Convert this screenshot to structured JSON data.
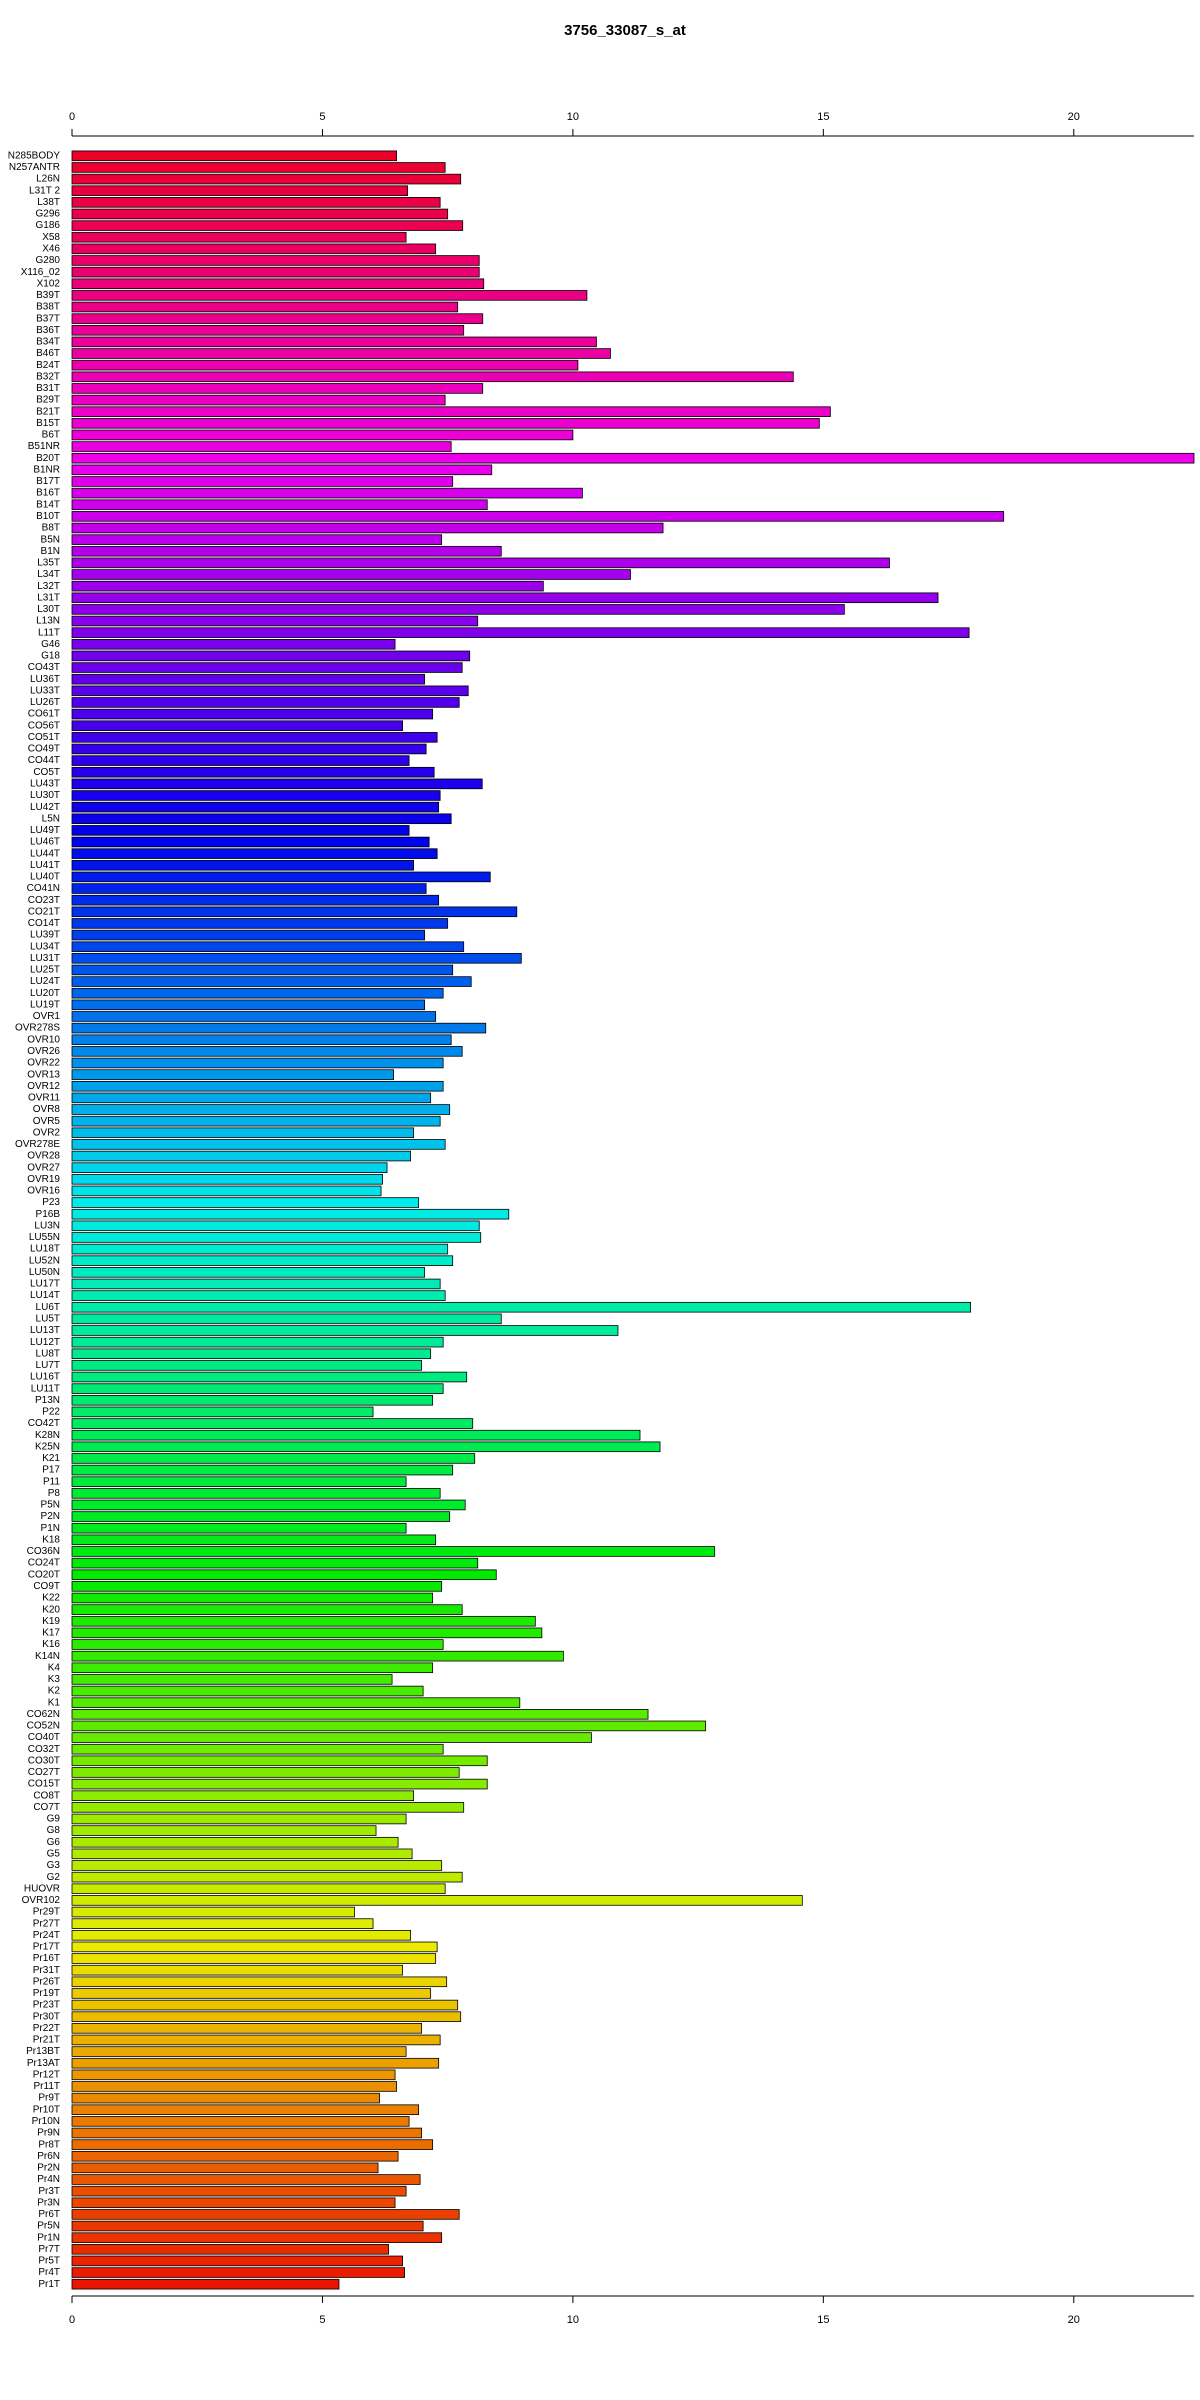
{
  "chart_data": {
    "type": "barh",
    "title": "3756_33087_s_at",
    "categories": [
      "N285BODY",
      "N257ANTR",
      "L26N",
      "L31T 2",
      "L38T",
      "G296",
      "G186",
      "X58",
      "X46",
      "G280",
      "X116_02",
      "X102",
      "B39T",
      "B38T",
      "B37T",
      "B36T",
      "B34T",
      "B46T",
      "B24T",
      "B32T",
      "B31T",
      "B29T",
      "B21T",
      "B15T",
      "B6T",
      "B51NR",
      "B20T",
      "B1NR",
      "B17T",
      "B16T",
      "B14T",
      "B10T",
      "B8T",
      "B5N",
      "B1N",
      "L35T",
      "L34T",
      "L32T",
      "L31T",
      "L30T",
      "L13N",
      "L11T",
      "G46",
      "G18",
      "CO43T",
      "LU36T",
      "LU33T",
      "LU26T",
      "CO61T",
      "CO56T",
      "CO51T",
      "CO49T",
      "CO44T",
      "CO5T",
      "LU43T",
      "LU30T",
      "LU42T",
      "L5N",
      "LU49T",
      "LU46T",
      "LU44T",
      "LU41T",
      "LU40T",
      "CO41N",
      "CO23T",
      "CO21T",
      "CO14T",
      "LU39T",
      "LU34T",
      "LU31T",
      "LU25T",
      "LU24T",
      "LU20T",
      "LU19T",
      "OVR1",
      "OVR278S",
      "OVR10",
      "OVR26",
      "OVR22",
      "OVR13",
      "OVR12",
      "OVR11",
      "OVR8",
      "OVR5",
      "OVR2",
      "OVR278E",
      "OVR28",
      "OVR27",
      "OVR19",
      "OVR16",
      "P23",
      "P16B",
      "LU3N",
      "LU55N",
      "LU18T",
      "LU52N",
      "LU50N",
      "LU17T",
      "LU14T",
      "LU6T",
      "LU5T",
      "LU13T",
      "LU12T",
      "LU8T",
      "LU7T",
      "LU16T",
      "LU11T",
      "P13N",
      "P22",
      "CO42T",
      "K28N",
      "K25N",
      "K21",
      "P17",
      "P11",
      "P8",
      "P5N",
      "P2N",
      "P1N",
      "K18",
      "CO36N",
      "CO24T",
      "CO20T",
      "CO9T",
      "K22",
      "K20",
      "K19",
      "K17",
      "K16",
      "K14N",
      "K4",
      "K3",
      "K2",
      "K1",
      "CO62N",
      "CO52N",
      "CO40T",
      "CO32T",
      "CO30T",
      "CO27T",
      "CO15T",
      "CO8T",
      "CO7T",
      "G9",
      "G8",
      "G6",
      "G5",
      "G3",
      "G2",
      "HUOVR",
      "OVR102",
      "Pr29T",
      "Pr27T",
      "Pr24T",
      "Pr17T",
      "Pr16T",
      "Pr31T",
      "Pr26T",
      "Pr19T",
      "Pr23T",
      "Pr30T",
      "Pr22T",
      "Pr21T",
      "Pr13BT",
      "Pr13AT",
      "Pr12T",
      "Pr11T",
      "Pr9T",
      "Pr10T",
      "Pr10N",
      "Pr9N",
      "Pr8T",
      "Pr6N",
      "Pr2N",
      "Pr4N",
      "Pr3T",
      "Pr3N",
      "Pr6T",
      "Pr5N",
      "Pr1N",
      "Pr7T",
      "Pr5T",
      "Pr4T",
      "Pr1T"
    ],
    "values": [
      6.48,
      7.45,
      7.76,
      6.7,
      7.35,
      7.5,
      7.8,
      6.67,
      7.26,
      8.13,
      8.13,
      8.22,
      10.28,
      7.7,
      8.2,
      7.82,
      10.47,
      10.75,
      10.1,
      14.4,
      8.2,
      7.45,
      15.14,
      14.92,
      10.0,
      7.57,
      22.4,
      8.38,
      7.6,
      10.19,
      8.29,
      18.6,
      11.8,
      7.38,
      8.57,
      16.32,
      11.15,
      9.41,
      17.29,
      15.42,
      8.1,
      17.91,
      6.45,
      7.94,
      7.79,
      7.04,
      7.91,
      7.73,
      7.2,
      6.6,
      7.29,
      7.07,
      6.73,
      7.23,
      8.19,
      7.35,
      7.32,
      7.57,
      6.73,
      7.13,
      7.29,
      6.82,
      8.35,
      7.07,
      7.32,
      8.88,
      7.5,
      7.04,
      7.82,
      8.97,
      7.6,
      7.97,
      7.41,
      7.04,
      7.26,
      8.26,
      7.57,
      7.79,
      7.41,
      6.42,
      7.41,
      7.16,
      7.54,
      7.35,
      6.82,
      7.45,
      6.76,
      6.29,
      6.2,
      6.17,
      6.92,
      8.72,
      8.13,
      8.16,
      7.5,
      7.6,
      7.04,
      7.35,
      7.45,
      17.94,
      8.57,
      10.9,
      7.41,
      7.16,
      6.98,
      7.88,
      7.41,
      7.2,
      6.01,
      8.0,
      11.34,
      11.74,
      8.04,
      7.6,
      6.67,
      7.35,
      7.85,
      7.54,
      6.67,
      7.26,
      12.83,
      8.1,
      8.47,
      7.38,
      7.2,
      7.79,
      9.25,
      9.38,
      7.41,
      9.81,
      7.2,
      6.39,
      7.01,
      8.94,
      11.5,
      12.65,
      10.37,
      7.41,
      8.29,
      7.73,
      8.29,
      6.82,
      7.82,
      6.67,
      6.07,
      6.51,
      6.79,
      7.38,
      7.79,
      7.45,
      14.58,
      5.64,
      6.01,
      6.76,
      7.29,
      7.26,
      6.6,
      7.48,
      7.16,
      7.7,
      7.76,
      6.98,
      7.35,
      6.67,
      7.32,
      6.45,
      6.48,
      6.14,
      6.92,
      6.73,
      6.98,
      7.2,
      6.51,
      6.11,
      6.95,
      6.67,
      6.45,
      7.73,
      7.01,
      7.38,
      6.32,
      6.6,
      6.64,
      5.33
    ],
    "colors": [
      "hsl(350,100%,46%)",
      "hsl(348,100%,46%)",
      "hsl(346,100%,46%)",
      "hsl(344,100%,46%)",
      "hsl(342,100%,46%)",
      "hsl(341,100%,46%)",
      "hsl(339,100%,46%)",
      "hsl(337,100%,46%)",
      "hsl(335,100%,46%)",
      "hsl(333,100%,46%)",
      "hsl(331,100%,46%)",
      "hsl(329,100%,46%)",
      "hsl(327,100%,46%)",
      "hsl(325,100%,46%)",
      "hsl(324,100%,46%)",
      "hsl(322,100%,46%)",
      "hsl(320,100%,46%)",
      "hsl(318,100%,46%)",
      "hsl(316,100%,46%)",
      "hsl(314,100%,46%)",
      "hsl(312,100%,46%)",
      "hsl(310,100%,46%)",
      "hsl(309,100%,46%)",
      "hsl(307,100%,46%)",
      "hsl(305,100%,46%)",
      "hsl(303,100%,46%)",
      "hsl(301,100%,46%)",
      "hsl(299,100%,46%)",
      "hsl(297,100%,46%)",
      "hsl(295,100%,46%)",
      "hsl(293,100%,46%)",
      "hsl(292,100%,46%)",
      "hsl(290,100%,46%)",
      "hsl(288,100%,46%)",
      "hsl(286,100%,46%)",
      "hsl(284,100%,46%)",
      "hsl(282,100%,46%)",
      "hsl(280,100%,46%)",
      "hsl(278,100%,46%)",
      "hsl(276,100%,46%)",
      "hsl(275,100%,46%)",
      "hsl(273,100%,46%)",
      "hsl(271,100%,46%)",
      "hsl(269,100%,46%)",
      "hsl(267,100%,46%)",
      "hsl(265,100%,46%)",
      "hsl(263,100%,46%)",
      "hsl(261,100%,46%)",
      "hsl(260,100%,46%)",
      "hsl(258,100%,46%)",
      "hsl(256,100%,46%)",
      "hsl(254,100%,46%)",
      "hsl(252,100%,46%)",
      "hsl(250,100%,46%)",
      "hsl(248,100%,46%)",
      "hsl(246,100%,46%)",
      "hsl(244,100%,46%)",
      "hsl(243,100%,46%)",
      "hsl(241,100%,46%)",
      "hsl(239,100%,46%)",
      "hsl(237,100%,46%)",
      "hsl(235,100%,46%)",
      "hsl(233,100%,46%)",
      "hsl(231,100%,46%)",
      "hsl(229,100%,46%)",
      "hsl(227,100%,46%)",
      "hsl(226,100%,46%)",
      "hsl(224,100%,46%)",
      "hsl(222,100%,46%)",
      "hsl(220,100%,46%)",
      "hsl(218,100%,46%)",
      "hsl(216,100%,46%)",
      "hsl(214,100%,46%)",
      "hsl(212,100%,46%)",
      "hsl(211,100%,46%)",
      "hsl(209,100%,46%)",
      "hsl(207,100%,46%)",
      "hsl(205,100%,46%)",
      "hsl(203,100%,46%)",
      "hsl(201,100%,46%)",
      "hsl(199,100%,46%)",
      "hsl(197,100%,46%)",
      "hsl(195,100%,46%)",
      "hsl(194,100%,46%)",
      "hsl(192,100%,46%)",
      "hsl(190,100%,46%)",
      "hsl(188,100%,46%)",
      "hsl(186,100%,46%)",
      "hsl(184,100%,46%)",
      "hsl(182,100%,46%)",
      "hsl(180,100%,46%)",
      "hsl(178,100%,46%)",
      "hsl(177,100%,46%)",
      "hsl(175,100%,46%)",
      "hsl(173,100%,46%)",
      "hsl(171,100%,46%)",
      "hsl(169,100%,46%)",
      "hsl(167,100%,46%)",
      "hsl(165,100%,46%)",
      "hsl(163,100%,46%)",
      "hsl(161,100%,46%)",
      "hsl(160,100%,46%)",
      "hsl(158,100%,46%)",
      "hsl(156,100%,46%)",
      "hsl(154,100%,46%)",
      "hsl(152,100%,46%)",
      "hsl(150,100%,46%)",
      "hsl(148,100%,46%)",
      "hsl(146,100%,46%)",
      "hsl(145,100%,46%)",
      "hsl(143,100%,46%)",
      "hsl(141,100%,46%)",
      "hsl(139,100%,46%)",
      "hsl(137,100%,46%)",
      "hsl(135,100%,46%)",
      "hsl(133,100%,46%)",
      "hsl(131,100%,46%)",
      "hsl(129,100%,46%)",
      "hsl(128,100%,46%)",
      "hsl(126,100%,46%)",
      "hsl(124,100%,46%)",
      "hsl(122,100%,46%)",
      "hsl(120,100%,46%)",
      "hsl(118,100%,46%)",
      "hsl(116,100%,46%)",
      "hsl(114,100%,46%)",
      "hsl(112,100%,46%)",
      "hsl(111,100%,46%)",
      "hsl(109,100%,46%)",
      "hsl(107,100%,46%)",
      "hsl(105,100%,46%)",
      "hsl(103,100%,46%)",
      "hsl(101,100%,46%)",
      "hsl(99,100%,46%)",
      "hsl(97,100%,46%)",
      "hsl(96,100%,46%)",
      "hsl(94,100%,46%)",
      "hsl(92,100%,46%)",
      "hsl(90,100%,46%)",
      "hsl(88,100%,46%)",
      "hsl(86,100%,46%)",
      "hsl(84,100%,46%)",
      "hsl(82,100%,46%)",
      "hsl(80,100%,46%)",
      "hsl(79,100%,46%)",
      "hsl(77,100%,46%)",
      "hsl(75,100%,46%)",
      "hsl(73,100%,46%)",
      "hsl(71,100%,46%)",
      "hsl(69,100%,46%)",
      "hsl(67,100%,46%)",
      "hsl(65,100%,46%)",
      "hsl(63,100%,46%)",
      "hsl(62,100%,46%)",
      "hsl(60,100%,46%)",
      "hsl(58,100%,46%)",
      "hsl(56,100%,46%)",
      "hsl(54,100%,46%)",
      "hsl(52,100%,46%)",
      "hsl(50,100%,46%)",
      "hsl(48,100%,46%)",
      "hsl(46,100%,46%)",
      "hsl(45,100%,46%)",
      "hsl(43,100%,46%)",
      "hsl(41,100%,46%)",
      "hsl(39,100%,46%)",
      "hsl(37,100%,46%)",
      "hsl(35,100%,46%)",
      "hsl(33,100%,46%)",
      "hsl(31,100%,46%)",
      "hsl(30,100%,46%)",
      "hsl(28,100%,46%)",
      "hsl(26,100%,46%)",
      "hsl(24,100%,46%)",
      "hsl(22,100%,46%)",
      "hsl(20,100%,46%)",
      "hsl(18,100%,46%)",
      "hsl(16,100%,46%)",
      "hsl(14,100%,46%)",
      "hsl(13,100%,46%)",
      "hsl(11,100%,46%)",
      "hsl(9,100%,46%)",
      "hsl(7,100%,46%)",
      "hsl(5,100%,46%)"
    ],
    "xlim": [
      0,
      22.4
    ],
    "xticks": [
      0,
      5,
      10,
      15,
      20
    ]
  }
}
